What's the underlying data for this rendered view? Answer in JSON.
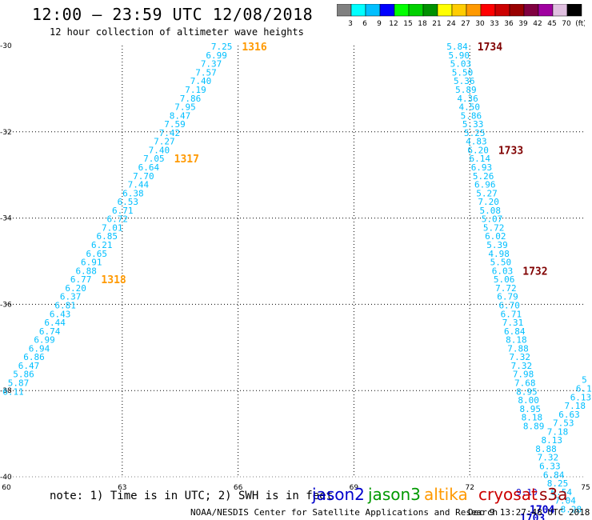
{
  "header": {
    "title": "12:00 – 23:59 UTC 12/08/2018",
    "subtitle": "12 hour collection of altimeter wave heights"
  },
  "colorbar": {
    "colors": [
      "#808080",
      "#00ffff",
      "#00bfff",
      "#0000ff",
      "#00ff00",
      "#00d000",
      "#009000",
      "#ffff00",
      "#ffcc00",
      "#ff9900",
      "#ff0000",
      "#cc0000",
      "#990000",
      "#800040",
      "#a000a0",
      "#e0c0e0",
      "#000000"
    ],
    "ticks": [
      "3",
      "6",
      "9",
      "12",
      "15",
      "18",
      "21",
      "24",
      "27",
      "30",
      "33",
      "36",
      "39",
      "42",
      "45",
      "70",
      "(ft)"
    ]
  },
  "map": {
    "lon_min": 60,
    "lon_max": 75,
    "lat_min": -40,
    "lat_max": -30,
    "x_ticks": [
      "60",
      "63",
      "66",
      "69",
      "72",
      "75"
    ],
    "y_ticks": [
      "-30",
      "-32",
      "-34",
      "-36",
      "-38",
      "-40"
    ],
    "y_tick_values": [
      -30,
      -32,
      -34,
      -36,
      -38,
      -40
    ],
    "x_tick_values": [
      60,
      63,
      66,
      69,
      72,
      75
    ]
  },
  "tracks": [
    {
      "satellite": "altika",
      "color": "#00bfff",
      "time_color": "#ff9900",
      "lat_start": -30.02,
      "lat_step": -0.2,
      "lon_start": 65.85,
      "lon_step": -0.135,
      "values": [
        "7.25",
        "6.99",
        "7.37",
        "7.57",
        "7.40",
        "7.19",
        "7.86",
        "7.95",
        "8.47",
        "7.59",
        "7.42",
        "7.27",
        "7.40",
        "7.05",
        "6.64",
        "7.70",
        "7.44",
        "6.38",
        "6.53",
        "6.71",
        "6.72",
        "7.01",
        "6.85",
        "6.21",
        "6.65",
        "6.91",
        "6.88",
        "6.77",
        "6.20",
        "6.37",
        "6.81",
        "6.43",
        "6.44",
        "6.74",
        "6.99",
        "6.94",
        "6.86",
        "6.47",
        "5.86",
        "5.87",
        "6.11"
      ],
      "times": [
        {
          "label": "1316",
          "index": 0
        },
        {
          "label": "1317",
          "index": 13
        },
        {
          "label": "1318",
          "index": 27
        }
      ]
    },
    {
      "satellite": "cryosat",
      "color": "#00bfff",
      "time_color": "#800000",
      "lat_start": -30.02,
      "lat_step": -0.2,
      "lon_start": 71.95,
      "lon_step": 0.045,
      "values": [
        "5.84",
        "5.90",
        "5.03",
        "5.50",
        "5.36",
        "5.89",
        "4.36",
        "4.50",
        "5.86",
        "5.33",
        "5.25",
        "4.83",
        "6.20",
        "6.14",
        "6.93",
        "5.26",
        "6.96",
        "5.27",
        "7.20",
        "5.08",
        "5.07",
        "5.72",
        "6.02",
        "5.39",
        "4.98",
        "5.50",
        "6.03",
        "5.06",
        "7.72",
        "6.79",
        "6.70",
        "6.71",
        "7.31",
        "6.84",
        "8.18",
        "7.88",
        "7.32",
        "7.32",
        "7.98",
        "7.68",
        "8.95",
        "8.00",
        "8.95",
        "8.18",
        "8.89"
      ],
      "times": [
        {
          "label": "1734",
          "index": 0
        },
        {
          "label": "1733",
          "index": 12
        },
        {
          "label": "1732",
          "index": 26
        }
      ]
    },
    {
      "satellite": "jason2",
      "color": "#00bfff",
      "time_color": "#0000cc",
      "points": [
        {
          "v": "5",
          "lat": -37.75,
          "lon": 74.9
        },
        {
          "v": "6.1",
          "lat": -37.95,
          "lon": 74.75
        },
        {
          "v": "6.13",
          "lat": -38.15,
          "lon": 74.6
        },
        {
          "v": "7.18",
          "lat": -38.35,
          "lon": 74.45
        },
        {
          "v": "6.63",
          "lat": -38.55,
          "lon": 74.3
        },
        {
          "v": "7.53",
          "lat": -38.75,
          "lon": 74.15
        },
        {
          "v": "7.18",
          "lat": -38.95,
          "lon": 74.0
        },
        {
          "v": "8.13",
          "lat": -39.15,
          "lon": 73.85
        },
        {
          "v": "8.88",
          "lat": -39.35,
          "lon": 73.7
        },
        {
          "v": "7.32",
          "lat": -39.55,
          "lon": 73.75
        },
        {
          "v": "6.33",
          "lat": -39.75,
          "lon": 73.8
        },
        {
          "v": "6.84",
          "lat": -39.95,
          "lon": 73.9
        },
        {
          "v": "8.25",
          "lat": -40.15,
          "lon": 74.0
        },
        {
          "v": "6.54",
          "lat": -40.35,
          "lon": 74.1
        },
        {
          "v": "7.04",
          "lat": -40.55,
          "lon": 74.2
        },
        {
          "v": "8.28",
          "lat": -40.75,
          "lon": 74.35
        },
        {
          "v": "9.10",
          "lat": -40.35,
          "lon": 73.2,
          "dark": true
        }
      ],
      "times": [
        {
          "label": "1704",
          "lat": -40.75,
          "lon": 73.55
        },
        {
          "label": "1703",
          "lat": -40.95,
          "lon": 73.3
        }
      ]
    }
  ],
  "legend": {
    "note": "note: 1) Time is in UTC; 2) SWH is in feet",
    "satellites": [
      {
        "name": "jason2",
        "color": "#0000cc"
      },
      {
        "name": "jason3",
        "color": "#009900"
      },
      {
        "name": "altika",
        "color": "#ff9900"
      },
      {
        "name": "cryosat",
        "color": "#cc0000"
      },
      {
        "name": "s3a",
        "color": "#990000"
      }
    ]
  },
  "footer": {
    "credit": "NOAA/NESDIS Center for Satellite Applications and Research",
    "timestamp": "Dec  9 13:27:48 UTC 2018"
  }
}
